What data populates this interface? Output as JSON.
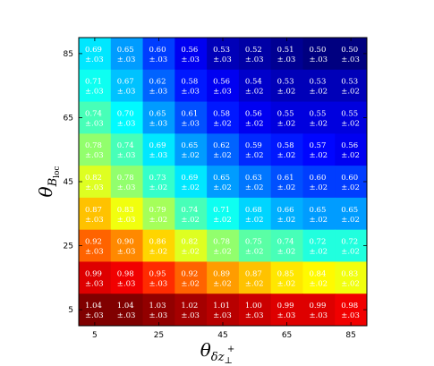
{
  "chart_data": {
    "type": "heatmap",
    "x_ticks": [
      "5",
      "25",
      "45",
      "65",
      "85"
    ],
    "y_ticks": [
      "85",
      "65",
      "45",
      "25",
      "5"
    ],
    "x_tick_values": [
      5,
      25,
      45,
      65,
      85
    ],
    "y_tick_values": [
      85,
      65,
      45,
      25,
      5
    ],
    "x_centers": [
      5,
      15,
      25,
      35,
      45,
      55,
      65,
      75,
      85
    ],
    "y_centers": [
      85,
      75,
      65,
      55,
      45,
      35,
      25,
      15,
      5
    ],
    "xlim": [
      0,
      90
    ],
    "ylim": [
      0,
      90
    ],
    "xlabel": {
      "main": "θ",
      "sub": "δz",
      "subsub": "⊥",
      "sup": "+"
    },
    "ylabel": {
      "main": "θ",
      "sub": "B",
      "subsub": "loc"
    },
    "value_range": [
      0.5,
      1.04
    ],
    "colormap": "jet",
    "values": [
      [
        0.69,
        0.65,
        0.6,
        0.56,
        0.53,
        0.52,
        0.51,
        0.5,
        0.5
      ],
      [
        0.71,
        0.67,
        0.62,
        0.58,
        0.56,
        0.54,
        0.53,
        0.53,
        0.53
      ],
      [
        0.74,
        0.7,
        0.65,
        0.61,
        0.58,
        0.56,
        0.55,
        0.55,
        0.55
      ],
      [
        0.78,
        0.74,
        0.69,
        0.65,
        0.62,
        0.59,
        0.58,
        0.57,
        0.56
      ],
      [
        0.82,
        0.78,
        0.73,
        0.69,
        0.65,
        0.63,
        0.61,
        0.6,
        0.6
      ],
      [
        0.87,
        0.83,
        0.79,
        0.74,
        0.71,
        0.68,
        0.66,
        0.65,
        0.65
      ],
      [
        0.92,
        0.9,
        0.86,
        0.82,
        0.78,
        0.75,
        0.74,
        0.72,
        0.72
      ],
      [
        0.99,
        0.98,
        0.95,
        0.92,
        0.89,
        0.87,
        0.85,
        0.84,
        0.83
      ],
      [
        1.04,
        1.04,
        1.03,
        1.02,
        1.01,
        1.0,
        0.99,
        0.99,
        0.98
      ]
    ],
    "value_labels": [
      [
        "0.69",
        "0.65",
        "0.60",
        "0.56",
        "0.53",
        "0.52",
        "0.51",
        "0.50",
        "0.50"
      ],
      [
        "0.71",
        "0.67",
        "0.62",
        "0.58",
        "0.56",
        "0.54",
        "0.53",
        "0.53",
        "0.53"
      ],
      [
        "0.74",
        "0.70",
        "0.65",
        "0.61",
        "0.58",
        "0.56",
        "0.55",
        "0.55",
        "0.55"
      ],
      [
        "0.78",
        "0.74",
        "0.69",
        "0.65",
        "0.62",
        "0.59",
        "0.58",
        "0.57",
        "0.56"
      ],
      [
        "0.82",
        "0.78",
        "0.73",
        "0.69",
        "0.65",
        "0.63",
        "0.61",
        "0.60",
        "0.60"
      ],
      [
        "0.87",
        "0.83",
        "0.79",
        "0.74",
        "0.71",
        "0.68",
        "0.66",
        "0.65",
        "0.65"
      ],
      [
        "0.92",
        "0.90",
        "0.86",
        "0.82",
        "0.78",
        "0.75",
        "0.74",
        "0.72",
        "0.72"
      ],
      [
        "0.99",
        "0.98",
        "0.95",
        "0.92",
        "0.89",
        "0.87",
        "0.85",
        "0.84",
        "0.83"
      ],
      [
        "1.04",
        "1.04",
        "1.03",
        "1.02",
        "1.01",
        "1.00",
        "0.99",
        "0.99",
        "0.98"
      ]
    ],
    "errors": [
      [
        "±.03",
        "±.03",
        "±.03",
        "±.03",
        "±.03",
        "±.03",
        "±.03",
        "±.03",
        "±.03"
      ],
      [
        "±.03",
        "±.03",
        "±.03",
        "±.03",
        "±.03",
        "±.02",
        "±.02",
        "±.02",
        "±.02"
      ],
      [
        "±.03",
        "±.03",
        "±.03",
        "±.03",
        "±.02",
        "±.02",
        "±.02",
        "±.02",
        "±.02"
      ],
      [
        "±.03",
        "±.03",
        "±.03",
        "±.02",
        "±.02",
        "±.02",
        "±.02",
        "±.02",
        "±.02"
      ],
      [
        "±.03",
        "±.03",
        "±.02",
        "±.02",
        "±.02",
        "±.02",
        "±.02",
        "±.02",
        "±.02"
      ],
      [
        "±.03",
        "±.03",
        "±.02",
        "±.02",
        "±.02",
        "±.02",
        "±.02",
        "±.02",
        "±.02"
      ],
      [
        "±.03",
        "±.03",
        "±.02",
        "±.02",
        "±.02",
        "±.02",
        "±.02",
        "±.02",
        "±.02"
      ],
      [
        "±.03",
        "±.03",
        "±.03",
        "±.02",
        "±.02",
        "±.02",
        "±.02",
        "±.02",
        "±.02"
      ],
      [
        "±.03",
        "±.03",
        "±.03",
        "±.03",
        "±.03",
        "±.03",
        "±.03",
        "±.03",
        "±.03"
      ]
    ]
  }
}
